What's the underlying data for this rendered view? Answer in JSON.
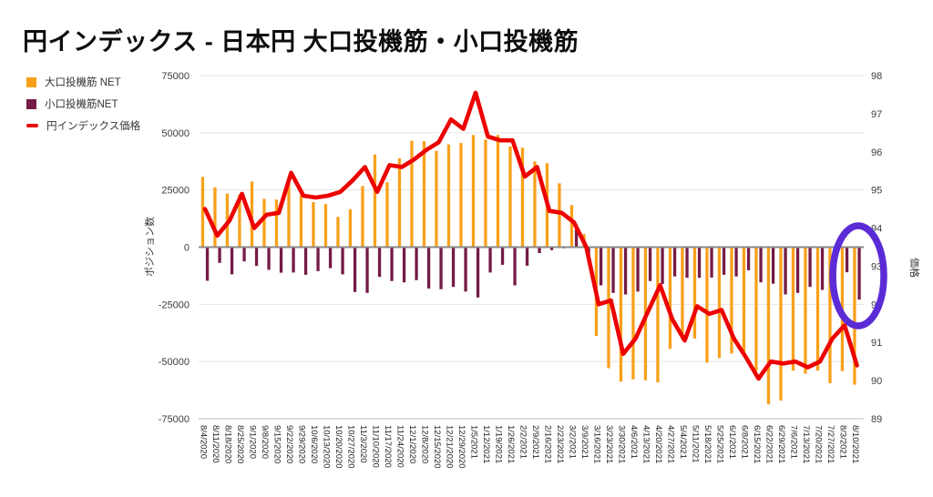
{
  "title": "円インデックス - 日本円 大口投機筋・小口投機筋",
  "legend": [
    {
      "label": "大口投機筋  NET",
      "color": "#F9A01B",
      "type": "bar"
    },
    {
      "label": "小口投機筋NET",
      "color": "#741B47",
      "type": "bar"
    },
    {
      "label": "円インデックス価格",
      "color": "#EC0000",
      "type": "line"
    }
  ],
  "chart_data": {
    "type": "combo-bar-line",
    "title": "円インデックス - 日本円 大口投機筋・小口投機筋",
    "grid": true,
    "legend_position": "top-left",
    "x": [
      "8/4/2020",
      "8/11/2020",
      "8/18/2020",
      "8/25/2020",
      "9/1/2020",
      "9/8/2020",
      "9/15/2020",
      "9/22/2020",
      "9/29/2020",
      "10/6/2020",
      "10/13/2020",
      "10/20/2020",
      "10/27/2020",
      "11/3/2020",
      "11/10/2020",
      "11/17/2020",
      "11/24/2020",
      "12/1/2020",
      "12/8/2020",
      "12/15/2020",
      "12/21/2020",
      "12/29/2020",
      "1/5/2021",
      "1/12/2021",
      "1/19/2021",
      "1/26/2021",
      "2/2/2021",
      "2/9/2021",
      "2/16/2021",
      "2/23/2021",
      "3/2/2021",
      "3/9/2021",
      "3/16/2021",
      "3/23/2021",
      "3/30/2021",
      "4/6/2021",
      "4/13/2021",
      "4/20/2021",
      "4/27/2021",
      "5/4/2021",
      "5/11/2021",
      "5/18/2021",
      "5/25/2021",
      "6/1/2021",
      "6/8/2021",
      "6/15/2021",
      "6/22/2021",
      "6/29/2021",
      "7/6/2021",
      "7/13/2021",
      "7/20/2021",
      "7/27/2021",
      "8/3/2021",
      "8/10/2021"
    ],
    "series": [
      {
        "name": "大口投機筋  NET",
        "type": "bar",
        "axis": "left",
        "color": "#F9A01B",
        "values": [
          30700,
          26100,
          23400,
          23000,
          28700,
          21100,
          20800,
          28700,
          22800,
          19700,
          18800,
          13200,
          16600,
          26700,
          40500,
          28400,
          38800,
          46500,
          46300,
          42100,
          44900,
          45500,
          49000,
          47000,
          49000,
          44000,
          43500,
          37500,
          36700,
          27900,
          18400,
          5700,
          -38800,
          -52900,
          -58800,
          -57800,
          -58200,
          -59100,
          -44500,
          -40500,
          -40000,
          -50500,
          -48500,
          -46500,
          -45700,
          -54000,
          -68700,
          -67100,
          -54000,
          -55300,
          -54000,
          -59500,
          -54200,
          -60100
        ]
      },
      {
        "name": "小口投機筋NET",
        "type": "bar",
        "axis": "left",
        "color": "#741B47",
        "values": [
          -14700,
          -6900,
          -11900,
          -6200,
          -8200,
          -9900,
          -11200,
          -11100,
          -12100,
          -10500,
          -9200,
          -11900,
          -19600,
          -20000,
          -13000,
          -14800,
          -15400,
          -14400,
          -18100,
          -18400,
          -17400,
          -19400,
          -22000,
          -11100,
          -7700,
          -16700,
          -8100,
          -2600,
          -1300,
          -500,
          7700,
          -3600,
          -16700,
          -20000,
          -20700,
          -19400,
          -14800,
          -16100,
          -12800,
          -13400,
          -13400,
          -13300,
          -12100,
          -12800,
          -10100,
          -15400,
          -16000,
          -20700,
          -20000,
          -17400,
          -18700,
          -15400,
          -11000,
          -22900
        ]
      },
      {
        "name": "円インデックス価格",
        "type": "line",
        "axis": "right",
        "color": "#EC0000",
        "values": [
          94.5,
          93.8,
          94.2,
          94.9,
          94.0,
          94.35,
          94.4,
          95.45,
          94.85,
          94.8,
          94.85,
          94.95,
          95.25,
          95.6,
          94.95,
          95.65,
          95.6,
          95.8,
          96.05,
          96.25,
          96.85,
          96.6,
          97.55,
          96.4,
          96.3,
          96.3,
          95.35,
          95.6,
          94.45,
          94.4,
          94.15,
          93.5,
          92.0,
          92.1,
          90.7,
          91.1,
          91.8,
          92.5,
          91.6,
          91.05,
          91.95,
          91.75,
          91.85,
          91.1,
          90.6,
          90.05,
          90.5,
          90.45,
          90.5,
          90.35,
          90.5,
          91.1,
          91.45,
          90.4
        ]
      }
    ],
    "left_axis": {
      "title": "ポジション数",
      "ticks": [
        75000,
        50000,
        25000,
        0,
        -25000,
        -50000,
        -75000
      ],
      "range": [
        -75000,
        75000
      ]
    },
    "right_axis": {
      "title": "価格",
      "ticks": [
        98,
        97,
        96,
        95,
        94,
        93,
        92,
        91,
        90,
        89
      ],
      "range": [
        89,
        98
      ]
    },
    "annotation": {
      "shape": "ellipse",
      "color": "#5B2BD6",
      "x_label": "8/10/2021"
    }
  }
}
